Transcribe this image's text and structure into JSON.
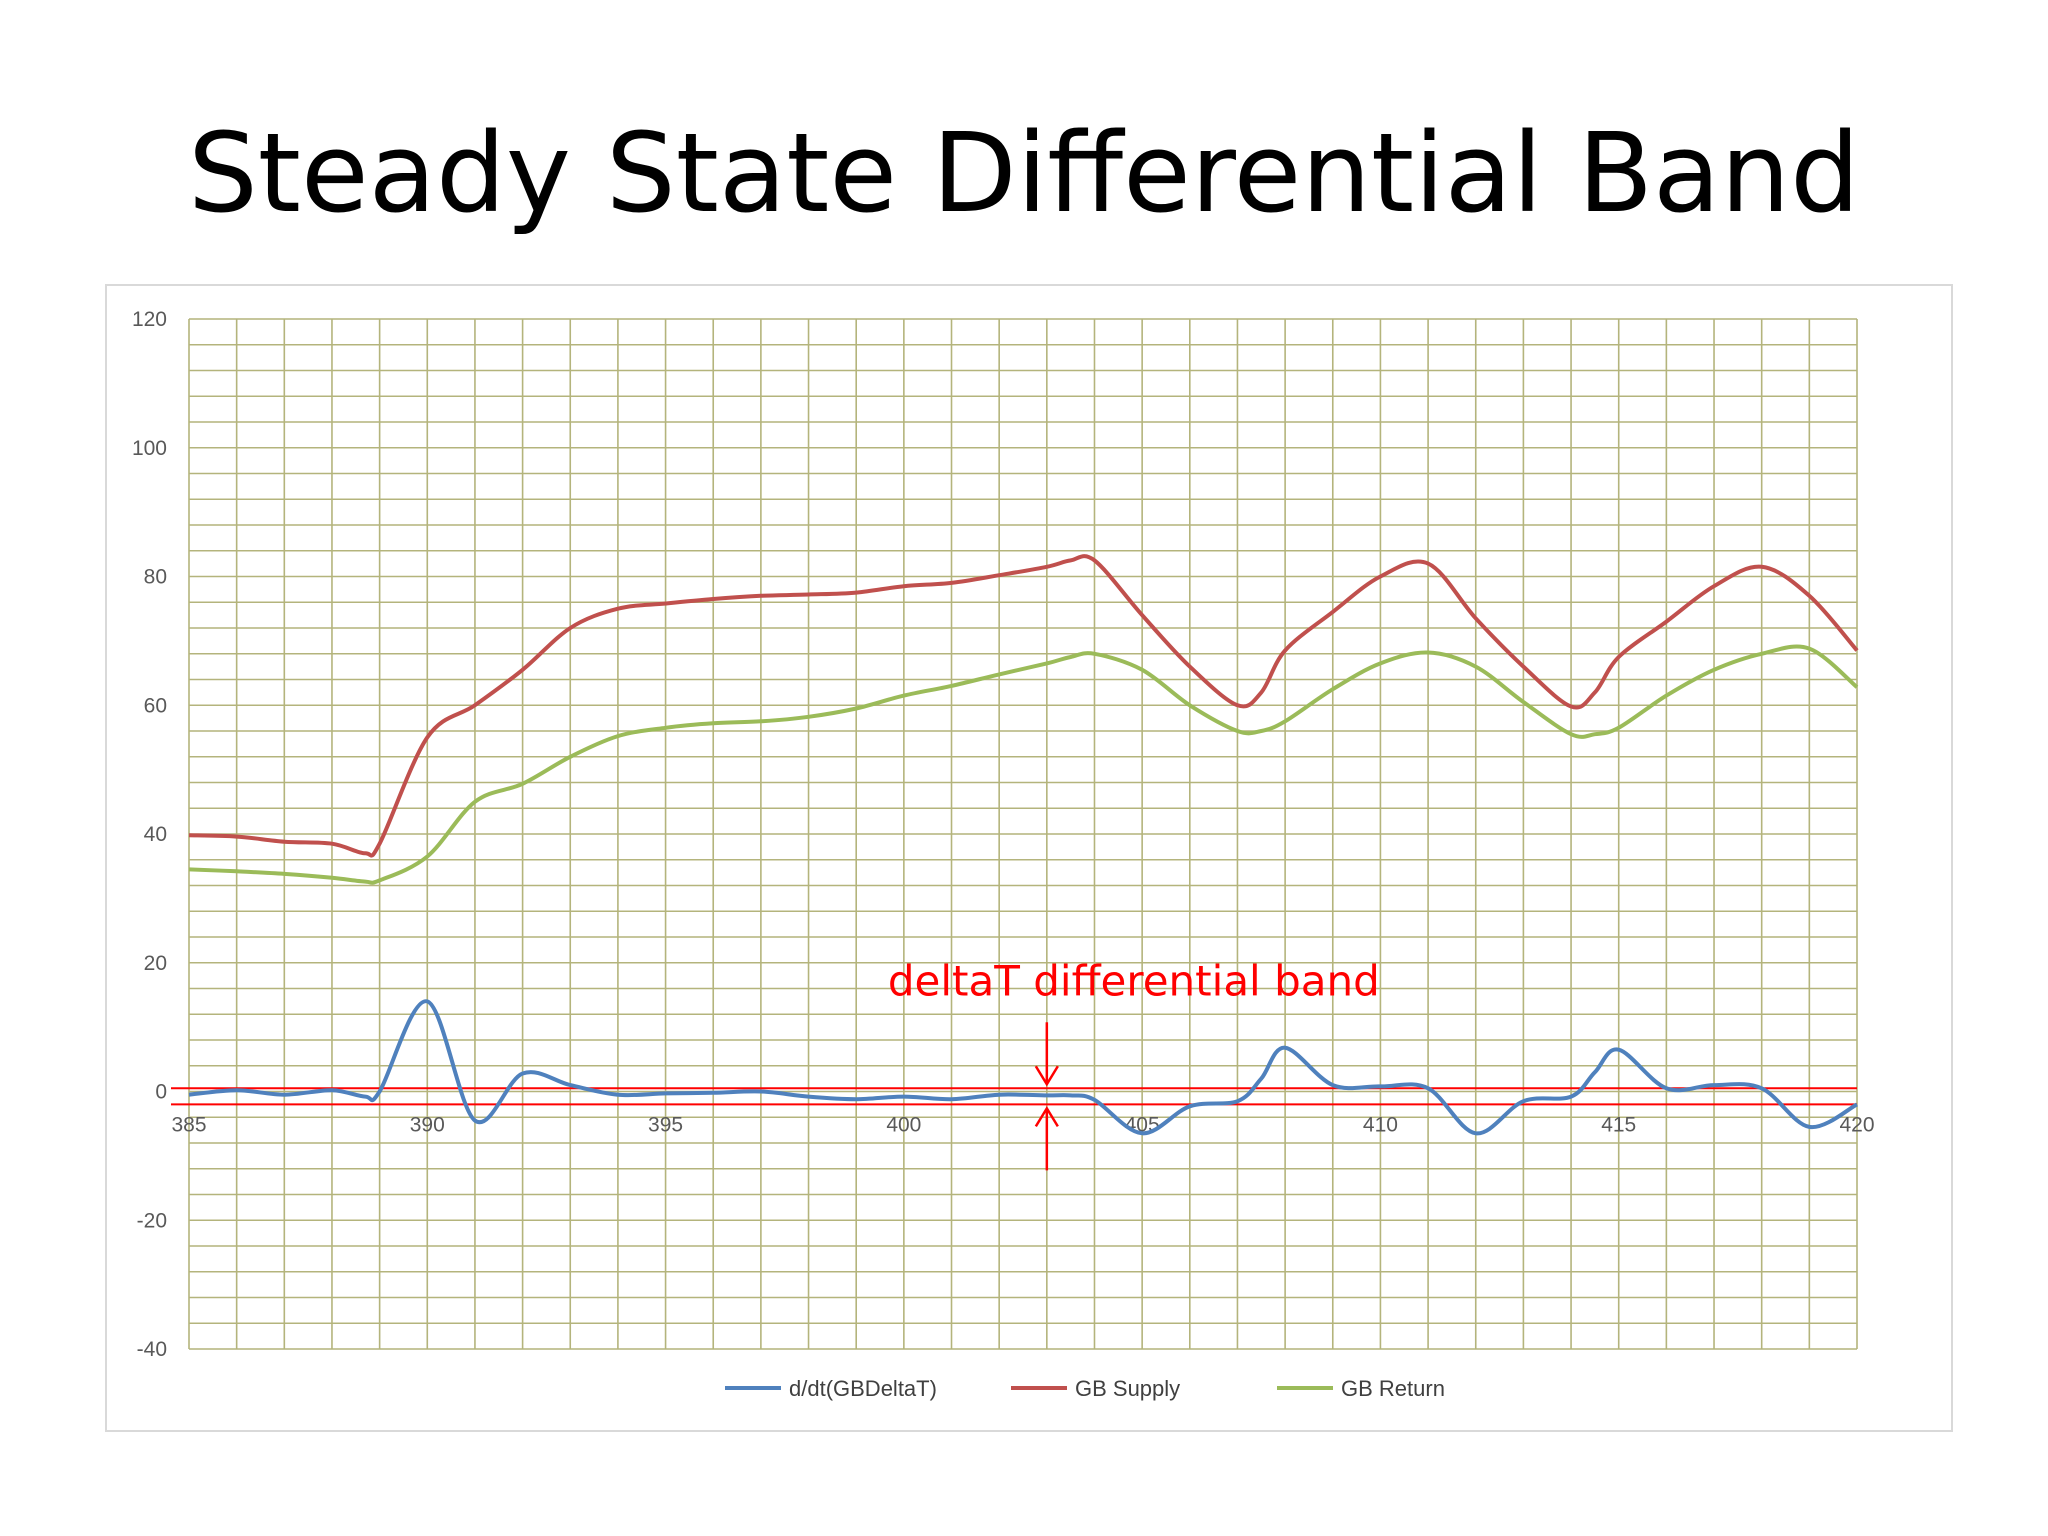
{
  "slide": {
    "title": "Steady State Differential Band"
  },
  "chart_data": {
    "type": "line",
    "title": "",
    "xlabel": "",
    "ylabel": "",
    "xlim": [
      385,
      420
    ],
    "ylim": [
      -40,
      120
    ],
    "x_ticks": [
      "385",
      "390",
      "395",
      "400",
      "405",
      "410",
      "415",
      "420"
    ],
    "y_ticks": [
      "120",
      "100",
      "80",
      "60",
      "40",
      "20",
      "0",
      "-20",
      "-40"
    ],
    "grid": "on",
    "legend_position": "bottom",
    "x": [
      385,
      386,
      387,
      388,
      388.7,
      389,
      390,
      391,
      392,
      393,
      394,
      395,
      396,
      397,
      398,
      399,
      400,
      401,
      402,
      403,
      403.5,
      404,
      405,
      406,
      407,
      407.5,
      408,
      409,
      410,
      411,
      412,
      413,
      414,
      414.5,
      415,
      416,
      417,
      418,
      419,
      420
    ],
    "series": [
      {
        "name": "d/dt(GBDeltaT)",
        "color": "#4f81bd",
        "values": [
          -0.5,
          0.2,
          -0.5,
          0.2,
          -0.8,
          0,
          14,
          -4.5,
          2.8,
          1,
          -0.5,
          -0.3,
          -0.2,
          0,
          -0.8,
          -1.2,
          -0.8,
          -1.2,
          -0.5,
          -0.6,
          -0.6,
          -1.3,
          -6.5,
          -2.3,
          -1.5,
          2,
          6.8,
          1,
          0.8,
          0.5,
          -6.5,
          -1.5,
          -0.8,
          3,
          6.5,
          0.5,
          1,
          0.5,
          -5.5,
          -2
        ]
      },
      {
        "name": "GB Supply",
        "color": "#c0504d",
        "values": [
          39.8,
          39.6,
          38.8,
          38.5,
          37,
          38.5,
          55,
          60,
          65.5,
          72,
          75,
          75.8,
          76.5,
          77,
          77.2,
          77.5,
          78.5,
          79,
          80.2,
          81.5,
          82.5,
          82.5,
          74,
          66,
          60,
          62,
          68.5,
          74.5,
          80,
          82,
          73.5,
          66,
          59.8,
          62,
          67.5,
          73,
          78.5,
          81.5,
          77,
          68.5
        ]
      },
      {
        "name": "GB Return",
        "color": "#9bbb59",
        "values": [
          34.5,
          34.2,
          33.8,
          33.2,
          32.6,
          32.8,
          36.5,
          45,
          47.8,
          52,
          55.2,
          56.5,
          57.2,
          57.5,
          58.2,
          59.5,
          61.5,
          63,
          64.8,
          66.5,
          67.5,
          68,
          65.5,
          60,
          56,
          56,
          57.5,
          62.5,
          66.5,
          68.2,
          66,
          60.5,
          55.5,
          55.5,
          56.5,
          61.5,
          65.5,
          68,
          68.8,
          62.8
        ]
      }
    ],
    "annotations": [
      {
        "text": "deltaT differential band",
        "color": "#ff0000",
        "band": [
          -2,
          0.5
        ],
        "x": 403
      }
    ]
  }
}
